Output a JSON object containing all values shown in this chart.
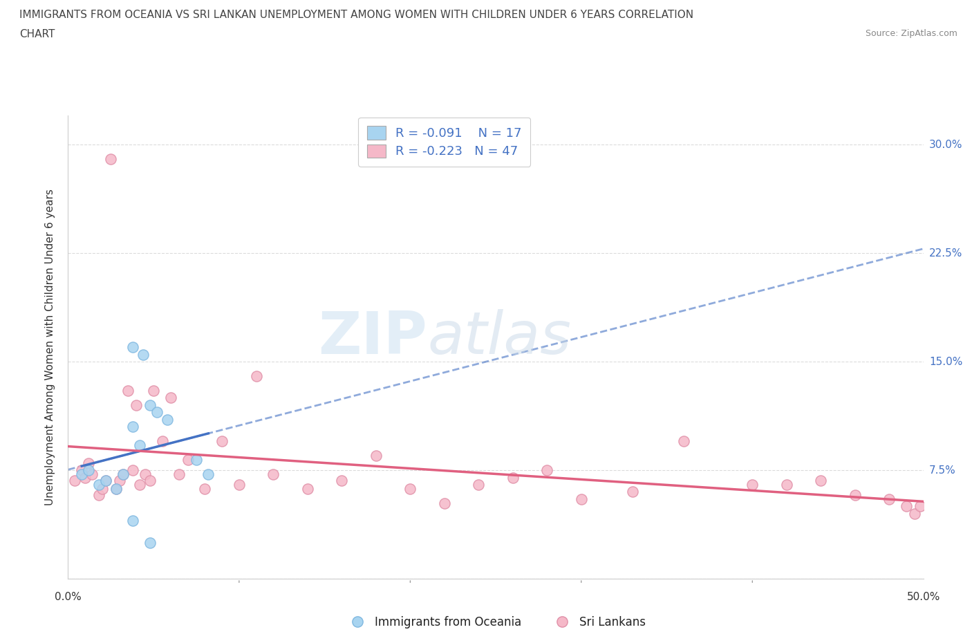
{
  "title_line1": "IMMIGRANTS FROM OCEANIA VS SRI LANKAN UNEMPLOYMENT AMONG WOMEN WITH CHILDREN UNDER 6 YEARS CORRELATION",
  "title_line2": "CHART",
  "source": "Source: ZipAtlas.com",
  "ylabel": "Unemployment Among Women with Children Under 6 years",
  "xlim": [
    0.0,
    0.5
  ],
  "ylim": [
    0.0,
    0.32
  ],
  "xtick_vals": [
    0.0,
    0.1,
    0.2,
    0.3,
    0.4,
    0.5
  ],
  "ytick_vals": [
    0.0,
    0.075,
    0.15,
    0.225,
    0.3
  ],
  "ytick_labels": [
    "",
    "7.5%",
    "15.0%",
    "22.5%",
    "30.0%"
  ],
  "blue_R": "-0.091",
  "blue_N": "17",
  "pink_R": "-0.223",
  "pink_N": "47",
  "blue_color": "#a8d4f0",
  "pink_color": "#f5b8c8",
  "blue_line_color": "#4472c4",
  "pink_line_color": "#e06080",
  "blue_scatter_x": [
    0.008,
    0.012,
    0.018,
    0.022,
    0.028,
    0.032,
    0.038,
    0.042,
    0.048,
    0.038,
    0.044,
    0.052,
    0.058,
    0.075,
    0.082,
    0.038,
    0.048
  ],
  "blue_scatter_y": [
    0.072,
    0.075,
    0.065,
    0.068,
    0.062,
    0.072,
    0.105,
    0.092,
    0.12,
    0.16,
    0.155,
    0.115,
    0.11,
    0.082,
    0.072,
    0.04,
    0.025
  ],
  "pink_scatter_x": [
    0.004,
    0.008,
    0.01,
    0.012,
    0.014,
    0.018,
    0.02,
    0.022,
    0.025,
    0.028,
    0.03,
    0.032,
    0.035,
    0.038,
    0.04,
    0.042,
    0.045,
    0.048,
    0.05,
    0.055,
    0.06,
    0.065,
    0.07,
    0.08,
    0.09,
    0.1,
    0.11,
    0.12,
    0.14,
    0.16,
    0.18,
    0.2,
    0.22,
    0.24,
    0.26,
    0.28,
    0.3,
    0.33,
    0.36,
    0.4,
    0.42,
    0.44,
    0.46,
    0.48,
    0.49,
    0.495,
    0.498
  ],
  "pink_scatter_y": [
    0.068,
    0.075,
    0.07,
    0.08,
    0.072,
    0.058,
    0.062,
    0.068,
    0.29,
    0.062,
    0.068,
    0.072,
    0.13,
    0.075,
    0.12,
    0.065,
    0.072,
    0.068,
    0.13,
    0.095,
    0.125,
    0.072,
    0.082,
    0.062,
    0.095,
    0.065,
    0.14,
    0.072,
    0.062,
    0.068,
    0.085,
    0.062,
    0.052,
    0.065,
    0.07,
    0.075,
    0.055,
    0.06,
    0.095,
    0.065,
    0.065,
    0.068,
    0.058,
    0.055,
    0.05,
    0.045,
    0.05
  ]
}
